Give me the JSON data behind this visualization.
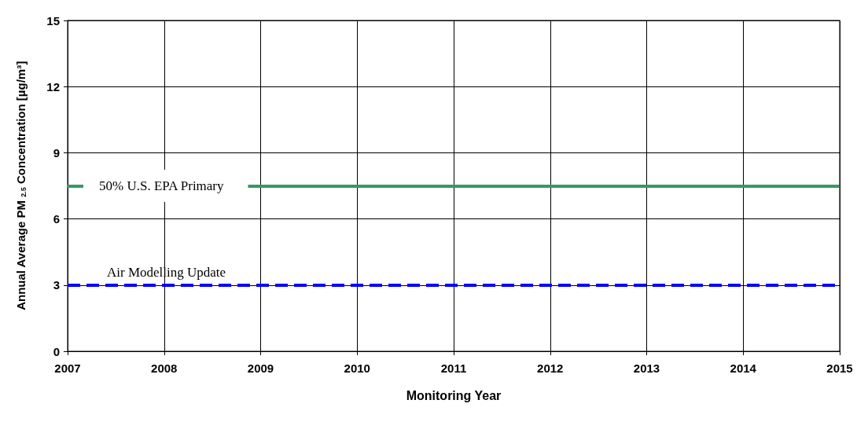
{
  "chart_data": {
    "type": "line",
    "xlabel": "Monitoring Year",
    "ylabel": "Annual Average PM $_{2.5}$ Concentration [µg/m³]",
    "xlim": [
      2007,
      2015
    ],
    "xticks": [
      2007,
      2008,
      2009,
      2010,
      2011,
      2012,
      2013,
      2014,
      2015
    ],
    "ylim": [
      0,
      15
    ],
    "yticks": [
      0,
      3,
      6,
      9,
      12,
      15
    ],
    "grid": true,
    "ref_lines": [
      {
        "axis": "y",
        "value": 7.5,
        "label": "50% U.S. EPA Primary",
        "color": "#339966",
        "line_style": "solid"
      },
      {
        "axis": "y",
        "value": 3,
        "label": "Air Modelling Update",
        "color": "#0000ff",
        "line_style": "dashed"
      }
    ]
  }
}
